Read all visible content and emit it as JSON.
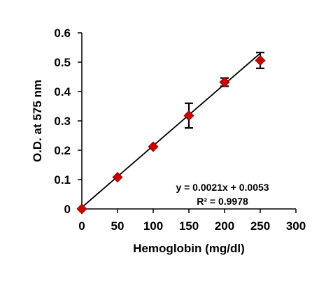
{
  "chart_data": {
    "type": "scatter",
    "title": "",
    "xlabel": "Hemoglobin (mg/dl)",
    "ylabel": "O.D. at 575 nm",
    "xlim": [
      0,
      300
    ],
    "ylim": [
      0,
      0.6
    ],
    "x_ticks": [
      "0",
      "50",
      "100",
      "150",
      "200",
      "250",
      "300"
    ],
    "y_ticks": [
      "0",
      "0.1",
      "0.2",
      "0.3",
      "0.4",
      "0.5",
      "0.6"
    ],
    "grid": false,
    "legend": "none",
    "series": [
      {
        "color": "#cc0000",
        "marker": "diamond",
        "points": [
          {
            "x": 0,
            "y": 0.0,
            "err": 0.0
          },
          {
            "x": 50,
            "y": 0.108,
            "err": 0.0
          },
          {
            "x": 100,
            "y": 0.212,
            "err": 0.0
          },
          {
            "x": 150,
            "y": 0.318,
            "err": 0.042
          },
          {
            "x": 200,
            "y": 0.432,
            "err": 0.014
          },
          {
            "x": 250,
            "y": 0.506,
            "err": 0.027
          }
        ]
      }
    ],
    "trendline": {
      "slope": 0.0021,
      "intercept": 0.0053,
      "x_range": [
        0,
        250
      ],
      "color": "#000000"
    },
    "annotations": {
      "equation": "y = 0.0021x + 0.0053",
      "r_squared": "R² = 0.9978"
    }
  }
}
